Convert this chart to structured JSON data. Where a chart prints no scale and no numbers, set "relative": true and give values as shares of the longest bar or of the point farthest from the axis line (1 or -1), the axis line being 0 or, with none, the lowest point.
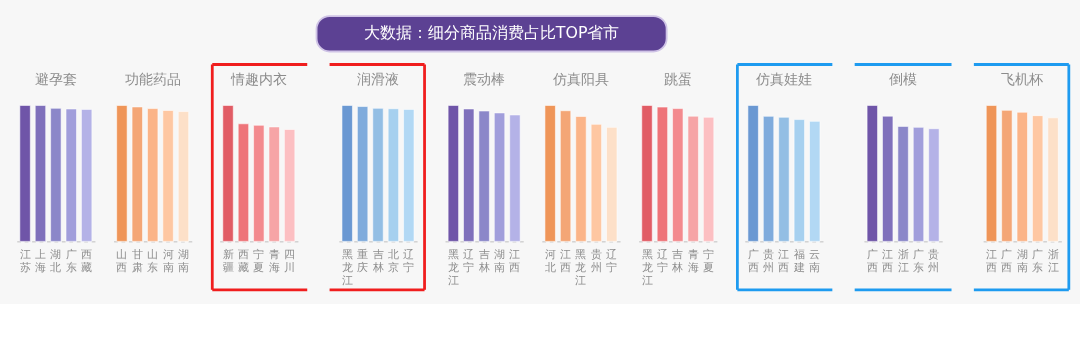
{
  "chart_data": [
    {
      "type": "other",
      "title": "大数据：细分商品消费占比TOP省市"
    },
    {
      "type": "bar",
      "title": "避孕套",
      "relative": true,
      "categories": [
        "江苏",
        "上海",
        "湖北",
        "广东",
        "西藏"
      ],
      "values": [
        1,
        1,
        0.979,
        0.974,
        0.971
      ],
      "colors": [
        "#6f55a8",
        "#7f70bb",
        "#8b87c9",
        "#a19edb",
        "#b4b2e7"
      ]
    },
    {
      "type": "bar",
      "title": "功能药品",
      "relative": true,
      "categories": [
        "山西",
        "甘肃",
        "山东",
        "河南",
        "湖南"
      ],
      "values": [
        1,
        0.989,
        0.977,
        0.963,
        0.955
      ],
      "colors": [
        "#ef9558",
        "#f4a676",
        "#fbb488",
        "#fec7a2",
        "#fde0c8"
      ]
    },
    {
      "type": "bar",
      "title": "情趣内衣",
      "relative": true,
      "categories": [
        "新疆",
        "西藏",
        "宁夏",
        "青海",
        "四川"
      ],
      "values": [
        1,
        0.865,
        0.854,
        0.842,
        0.823
      ],
      "colors": [
        "#e15c65",
        "#ee7479",
        "#f38a8e",
        "#f6a4a6",
        "#fcbfc2"
      ]
    },
    {
      "type": "bar",
      "title": "润滑液",
      "relative": true,
      "categories": [
        "黑龙江",
        "重庆",
        "吉林",
        "北京",
        "辽宁"
      ],
      "values": [
        1,
        0.992,
        0.979,
        0.976,
        0.971
      ],
      "colors": [
        "#6a98d2",
        "#7fabdc",
        "#93bee4",
        "#a6d0ef",
        "#b2d8f4"
      ]
    },
    {
      "type": "bar",
      "title": "震动棒",
      "relative": true,
      "categories": [
        "黑龙江",
        "辽宁",
        "吉林",
        "湖南",
        "江西"
      ],
      "values": [
        1,
        0.974,
        0.959,
        0.945,
        0.93
      ],
      "colors": [
        "#6f55a8",
        "#7f70bb",
        "#8b87c9",
        "#a19edb",
        "#b4b2e7"
      ]
    },
    {
      "type": "bar",
      "title": "仿真阳具",
      "relative": true,
      "categories": [
        "河北",
        "江西",
        "黑龙江",
        "贵州",
        "辽宁"
      ],
      "values": [
        1,
        0.961,
        0.919,
        0.861,
        0.839
      ],
      "colors": [
        "#ef9558",
        "#f4a676",
        "#fbb488",
        "#fec7a2",
        "#fde0c8"
      ]
    },
    {
      "type": "bar",
      "title": "跳蛋",
      "relative": true,
      "categories": [
        "黑龙江",
        "辽宁",
        "吉林",
        "青海",
        "宁夏"
      ],
      "values": [
        1,
        0.988,
        0.977,
        0.921,
        0.913
      ],
      "colors": [
        "#e15c65",
        "#ee7479",
        "#f38a8e",
        "#f6a4a6",
        "#fcbfc2"
      ]
    },
    {
      "type": "bar",
      "title": "仿真娃娃",
      "relative": true,
      "categories": [
        "广西",
        "贵州",
        "江西",
        "福建",
        "云南"
      ],
      "values": [
        1,
        0.92,
        0.913,
        0.896,
        0.883
      ],
      "colors": [
        "#6a98d2",
        "#7fabdc",
        "#93bee4",
        "#a6d0ef",
        "#b2d8f4"
      ]
    },
    {
      "type": "bar",
      "title": "倒模",
      "relative": true,
      "categories": [
        "广西",
        "江西",
        "浙江",
        "广东",
        "贵州"
      ],
      "values": [
        1,
        0.921,
        0.846,
        0.839,
        0.829
      ],
      "colors": [
        "#6f55a8",
        "#7f70bb",
        "#8b87c9",
        "#a19edb",
        "#b4b2e7"
      ]
    },
    {
      "type": "bar",
      "title": "飞机杯",
      "relative": true,
      "categories": [
        "江西",
        "广西",
        "湖南",
        "广东",
        "浙江"
      ],
      "values": [
        1,
        0.964,
        0.95,
        0.925,
        0.909
      ],
      "colors": [
        "#ef9558",
        "#f4a676",
        "#fbb488",
        "#fec7a2",
        "#fde0c8"
      ]
    }
  ]
}
